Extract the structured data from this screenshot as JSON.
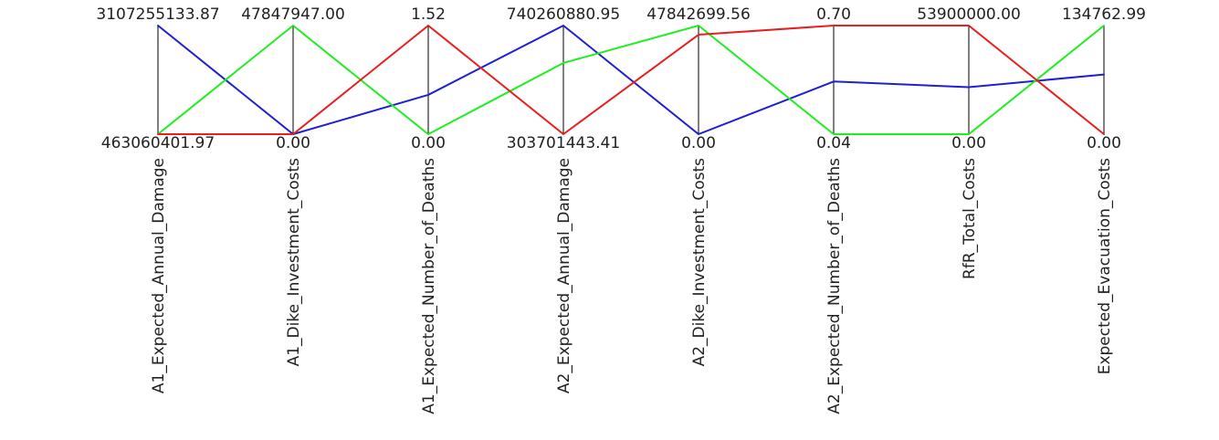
{
  "chart_data": {
    "type": "parallel-coordinates",
    "axes": [
      {
        "name": "A1_Expected_Annual_Damage",
        "max": 3107255133.87,
        "min": 463060401.97,
        "max_label": "3107255133.87",
        "min_label": "463060401.97"
      },
      {
        "name": "A1_Dike_Investment_Costs",
        "max": 47847947.0,
        "min": 0.0,
        "max_label": "47847947.00",
        "min_label": "0.00"
      },
      {
        "name": "A1_Expected_Number_of_Deaths",
        "max": 1.52,
        "min": 0.0,
        "max_label": "1.52",
        "min_label": "0.00"
      },
      {
        "name": "A2_Expected_Annual_Damage",
        "max": 740260880.95,
        "min": 303701443.41,
        "max_label": "740260880.95",
        "min_label": "303701443.41"
      },
      {
        "name": "A2_Dike_Investment_Costs",
        "max": 47842699.56,
        "min": 0.0,
        "max_label": "47842699.56",
        "min_label": "0.00"
      },
      {
        "name": "A2_Expected_Number_of_Deaths",
        "max": 0.7,
        "min": 0.04,
        "max_label": "0.70",
        "min_label": "0.04"
      },
      {
        "name": "RfR_Total_Costs",
        "max": 53900000.0,
        "min": 0.0,
        "max_label": "53900000.00",
        "min_label": "0.00"
      },
      {
        "name": "Expected_Evacuation_Costs",
        "max": 134762.99,
        "min": 0.0,
        "max_label": "134762.99",
        "min_label": "0.00"
      }
    ],
    "series": [
      {
        "name": "blue",
        "color": "#1f1fd6",
        "values": [
          3107255133.87,
          0.0,
          0.55,
          740260880.95,
          0.0,
          0.36,
          23350000,
          74000
        ]
      },
      {
        "name": "green",
        "color": "#1fee1f",
        "values": [
          463060401.97,
          47847947.0,
          0.0,
          590000000,
          47842699.56,
          0.04,
          0.0,
          134762.99
        ]
      },
      {
        "name": "red",
        "color": "#e81f1f",
        "values": [
          463060401.97,
          0.0,
          1.52,
          303701443.41,
          43800000,
          0.7,
          53900000.0,
          0.0
        ]
      }
    ]
  }
}
